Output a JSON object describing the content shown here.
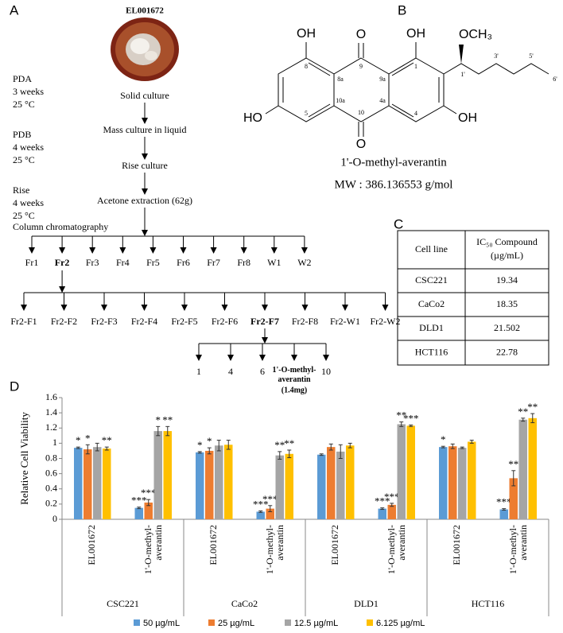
{
  "panel_labels": [
    "A",
    "B",
    "C",
    "D"
  ],
  "panel_a": {
    "title": "EL001672",
    "conditions": [
      {
        "medium": "PDA",
        "time": "3 weeks",
        "temp": "25 °C"
      },
      {
        "medium": "PDB",
        "time": "4 weeks",
        "temp": "25 °C"
      },
      {
        "medium": "Rise",
        "time": "4 weeks",
        "temp": "25 °C"
      }
    ],
    "steps": [
      "Solid culture",
      "Mass culture in liquid",
      "Rise culture",
      "Acetone extraction (62g)"
    ],
    "column_label": "Column chromatography",
    "fractions": [
      "Fr1",
      "Fr2",
      "Fr3",
      "Fr4",
      "Fr5",
      "Fr6",
      "Fr7",
      "Fr8",
      "W1",
      "W2"
    ],
    "subfractions": [
      "Fr2-F1",
      "Fr2-F2",
      "Fr2-F3",
      "Fr2-F4",
      "Fr2-F5",
      "Fr2-F6",
      "Fr2-F7",
      "Fr2-F8",
      "Fr2-W1",
      "Fr2-W2"
    ],
    "final_fractions": [
      "1",
      "4",
      "6",
      "10"
    ],
    "compound": "1'-O-methyl-averantin",
    "compound_amount": "(1.4mg)"
  },
  "panel_b": {
    "atoms": [
      "OH",
      "O",
      "OH",
      "OCH₃",
      "HO",
      "O",
      "OH"
    ],
    "numbering": [
      "8",
      "8a",
      "9",
      "9a",
      "1",
      "1'",
      "3'",
      "5'",
      "6'",
      "10a",
      "10",
      "4a",
      "4",
      "5"
    ],
    "compound": "1'-O-methyl-averantin",
    "mw": "MW : 386.136553  g/mol"
  },
  "table": {
    "header": [
      "Cell line",
      "IC₅₀ Compound",
      "(µg/mL)"
    ],
    "rows": [
      [
        "CSC221",
        19.34
      ],
      [
        "CaCo2",
        18.35
      ],
      [
        "DLD1",
        21.502
      ],
      [
        "HCT116",
        22.78
      ]
    ]
  },
  "chart_data": {
    "type": "bar",
    "y_label": "Relative Cell Viability",
    "categories": [
      "EL001672",
      "1'-O-methyl-averantin",
      "EL001672",
      "1'-O-methyl-averantin",
      "EL001672",
      "1'-O-methyl-averantin",
      "EL001672",
      "1'-O-methyl-averantin"
    ],
    "groups": [
      "CSC221",
      "CaCo2",
      "DLD1",
      "HCT116"
    ],
    "ylim": [
      0,
      1.6
    ],
    "yticks": [
      0,
      0.2,
      0.4,
      0.6,
      0.8,
      1,
      1.2,
      1.4,
      1.6
    ],
    "grid": false,
    "legend": "bottom",
    "series": [
      {
        "name": "50 µg/mL",
        "color": "#5b9bd5",
        "values": [
          0.94,
          0.15,
          0.88,
          0.1,
          0.85,
          0.14,
          0.95,
          0.13
        ],
        "errors": [
          0.01,
          0.01,
          0.01,
          0.01,
          0.01,
          0.01,
          0.01,
          0.01
        ],
        "significance": [
          "*",
          "***",
          "*",
          "***",
          null,
          "***",
          "*",
          "***"
        ]
      },
      {
        "name": "25 µg/mL",
        "color": "#ed7d31",
        "values": [
          0.92,
          0.22,
          0.9,
          0.14,
          0.95,
          0.19,
          0.96,
          0.54
        ],
        "errors": [
          0.06,
          0.04,
          0.04,
          0.04,
          0.04,
          0.02,
          0.03,
          0.1
        ],
        "significance": [
          "*",
          "***",
          "*",
          "***",
          null,
          "***",
          null,
          "**"
        ]
      },
      {
        "name": "12.5 µg/mL",
        "color": "#a5a5a5",
        "values": [
          0.95,
          1.16,
          0.97,
          0.84,
          0.89,
          1.25,
          0.94,
          1.31
        ],
        "errors": [
          0.05,
          0.06,
          0.07,
          0.05,
          0.09,
          0.03,
          0.01,
          0.02
        ],
        "significance": [
          null,
          "*",
          null,
          "**",
          null,
          "**",
          null,
          "**"
        ]
      },
      {
        "name": "6.125 µg/mL",
        "color": "#ffc000",
        "values": [
          0.93,
          1.16,
          0.98,
          0.86,
          0.97,
          1.23,
          1.02,
          1.33
        ],
        "errors": [
          0.02,
          0.06,
          0.06,
          0.05,
          0.03,
          0.01,
          0.02,
          0.06
        ],
        "significance": [
          "**",
          "**",
          null,
          "**",
          null,
          "***",
          null,
          "**"
        ]
      }
    ]
  }
}
